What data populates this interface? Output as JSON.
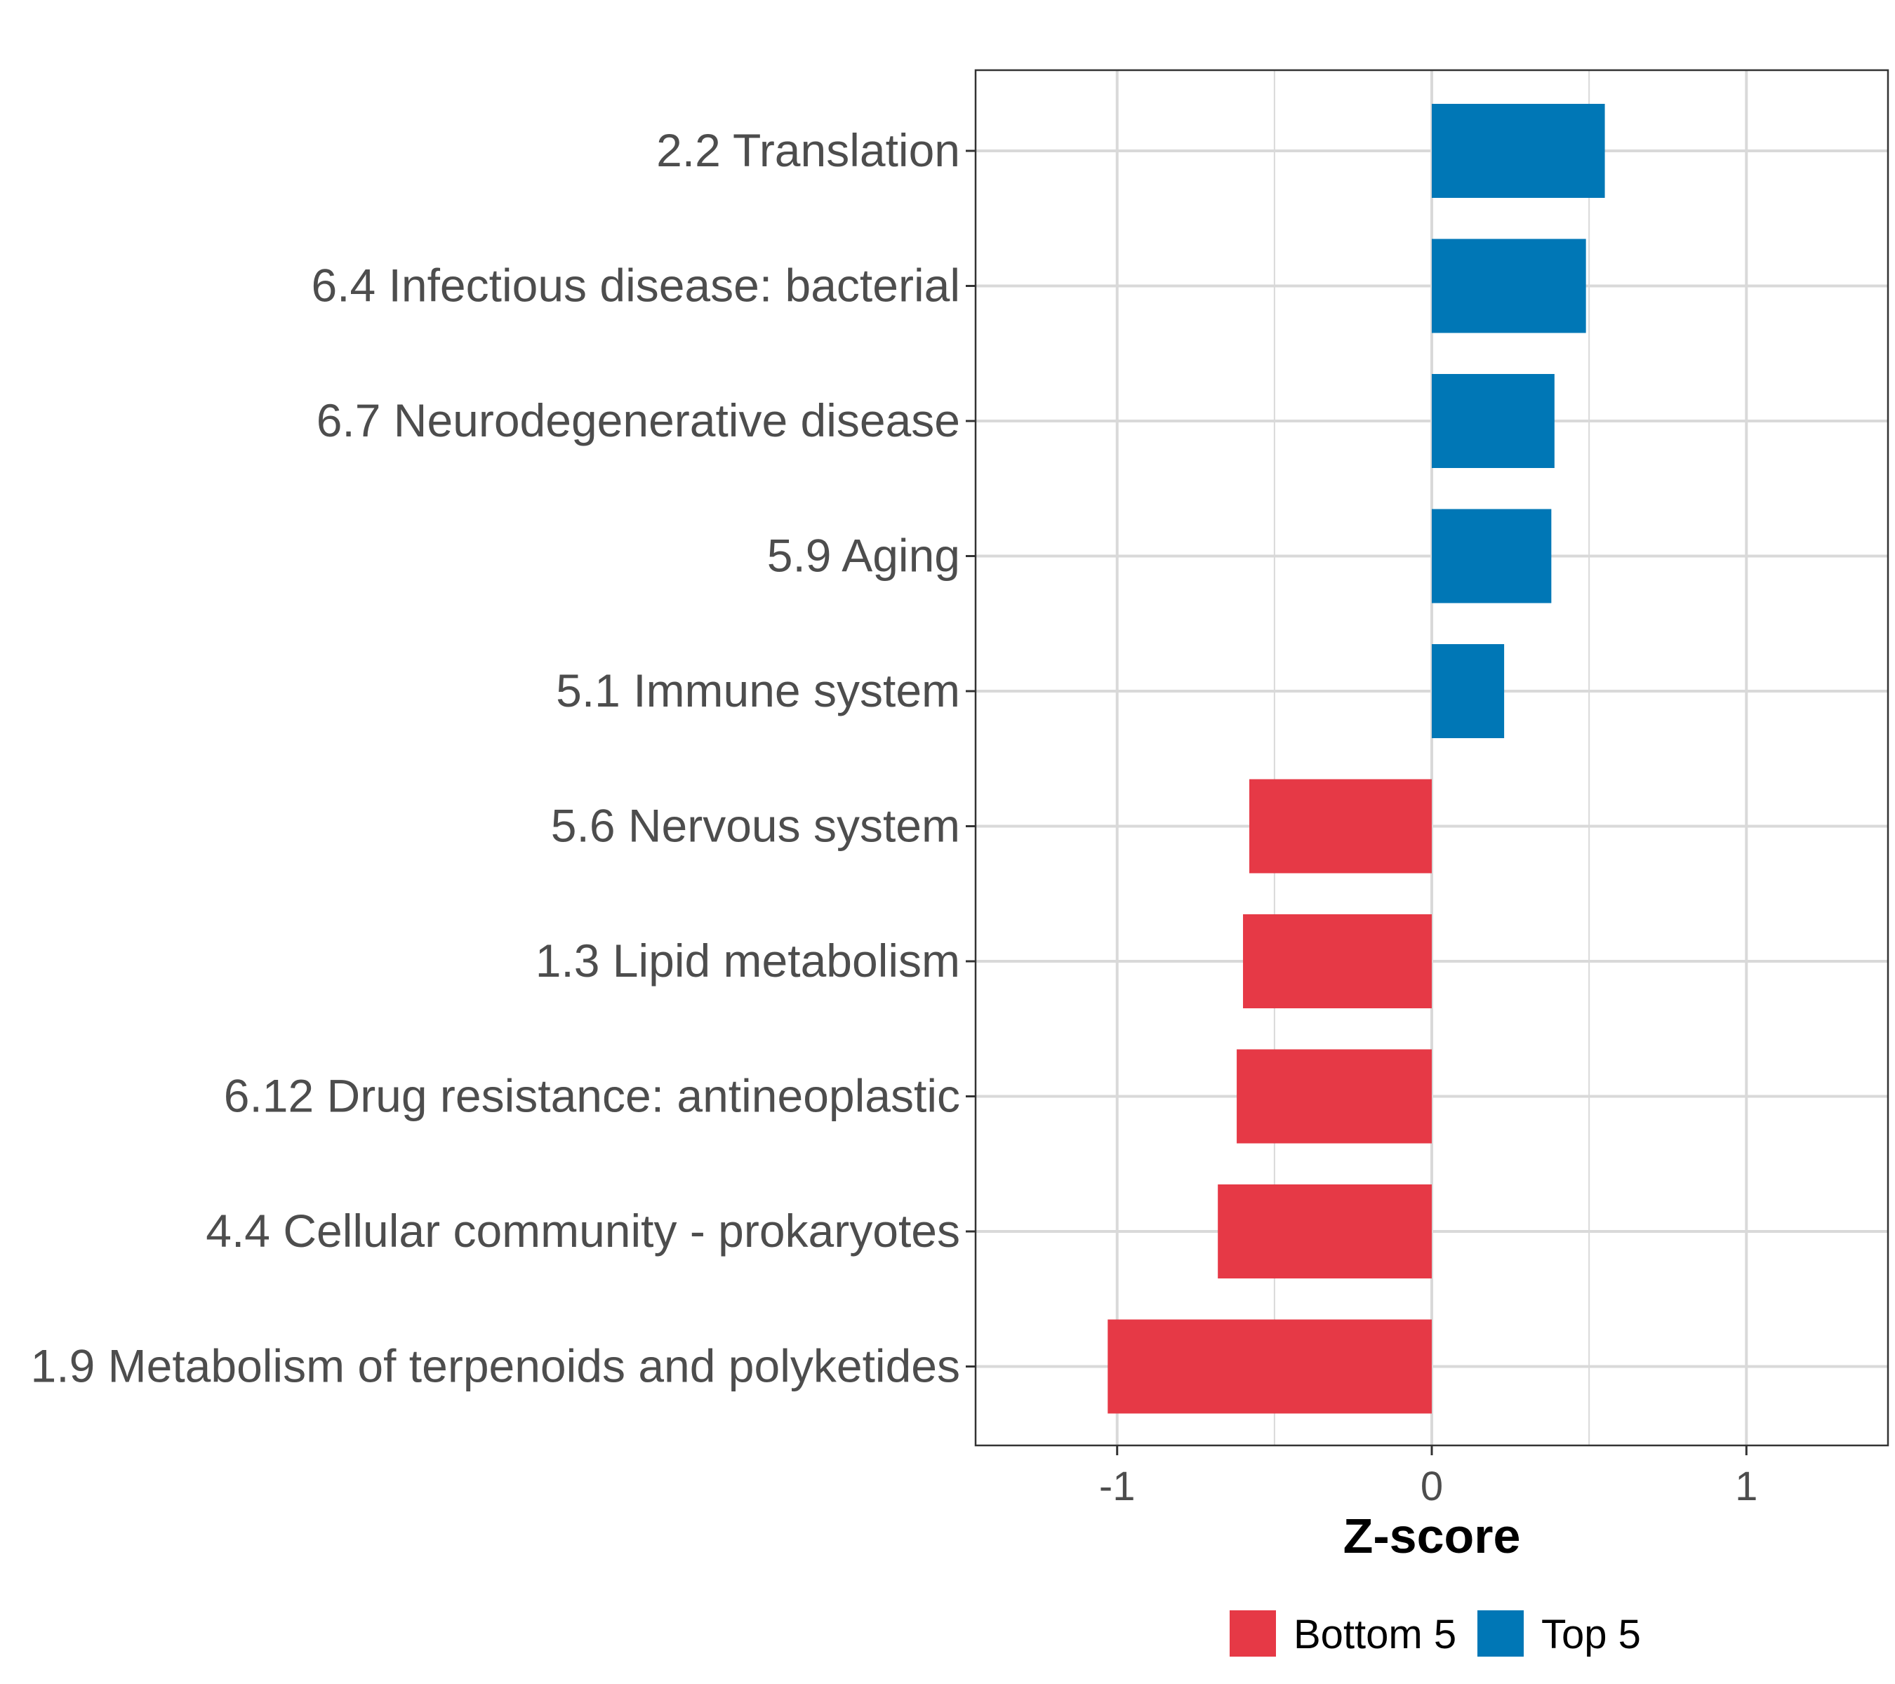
{
  "chart_data": {
    "type": "bar",
    "orientation": "horizontal",
    "title": "",
    "xlabel": "Z-score",
    "ylabel": "",
    "xlim": [
      -1.45,
      1.45
    ],
    "xticks": [
      -1,
      0,
      1
    ],
    "xtick_labels": [
      "-1",
      "0",
      "1"
    ],
    "grid": true,
    "legend_position": "bottom",
    "categories": [
      "2.2 Translation",
      "6.4 Infectious disease: bacterial",
      "6.7 Neurodegenerative disease",
      "5.9 Aging",
      "5.1 Immune system",
      "5.6 Nervous system",
      "1.3 Lipid metabolism",
      "6.12 Drug resistance: antineoplastic",
      "4.4 Cellular community - prokaryotes",
      "1.9 Metabolism of terpenoids and polyketides"
    ],
    "values": [
      0.55,
      0.49,
      0.39,
      0.38,
      0.23,
      -0.58,
      -0.6,
      -0.62,
      -0.68,
      -1.03
    ],
    "groups": [
      "Top 5",
      "Top 5",
      "Top 5",
      "Top 5",
      "Top 5",
      "Bottom 5",
      "Bottom 5",
      "Bottom 5",
      "Bottom 5",
      "Bottom 5"
    ],
    "legend": [
      {
        "name": "Bottom 5",
        "color": "#e63946"
      },
      {
        "name": "Top 5",
        "color": "#0077b6"
      }
    ]
  }
}
